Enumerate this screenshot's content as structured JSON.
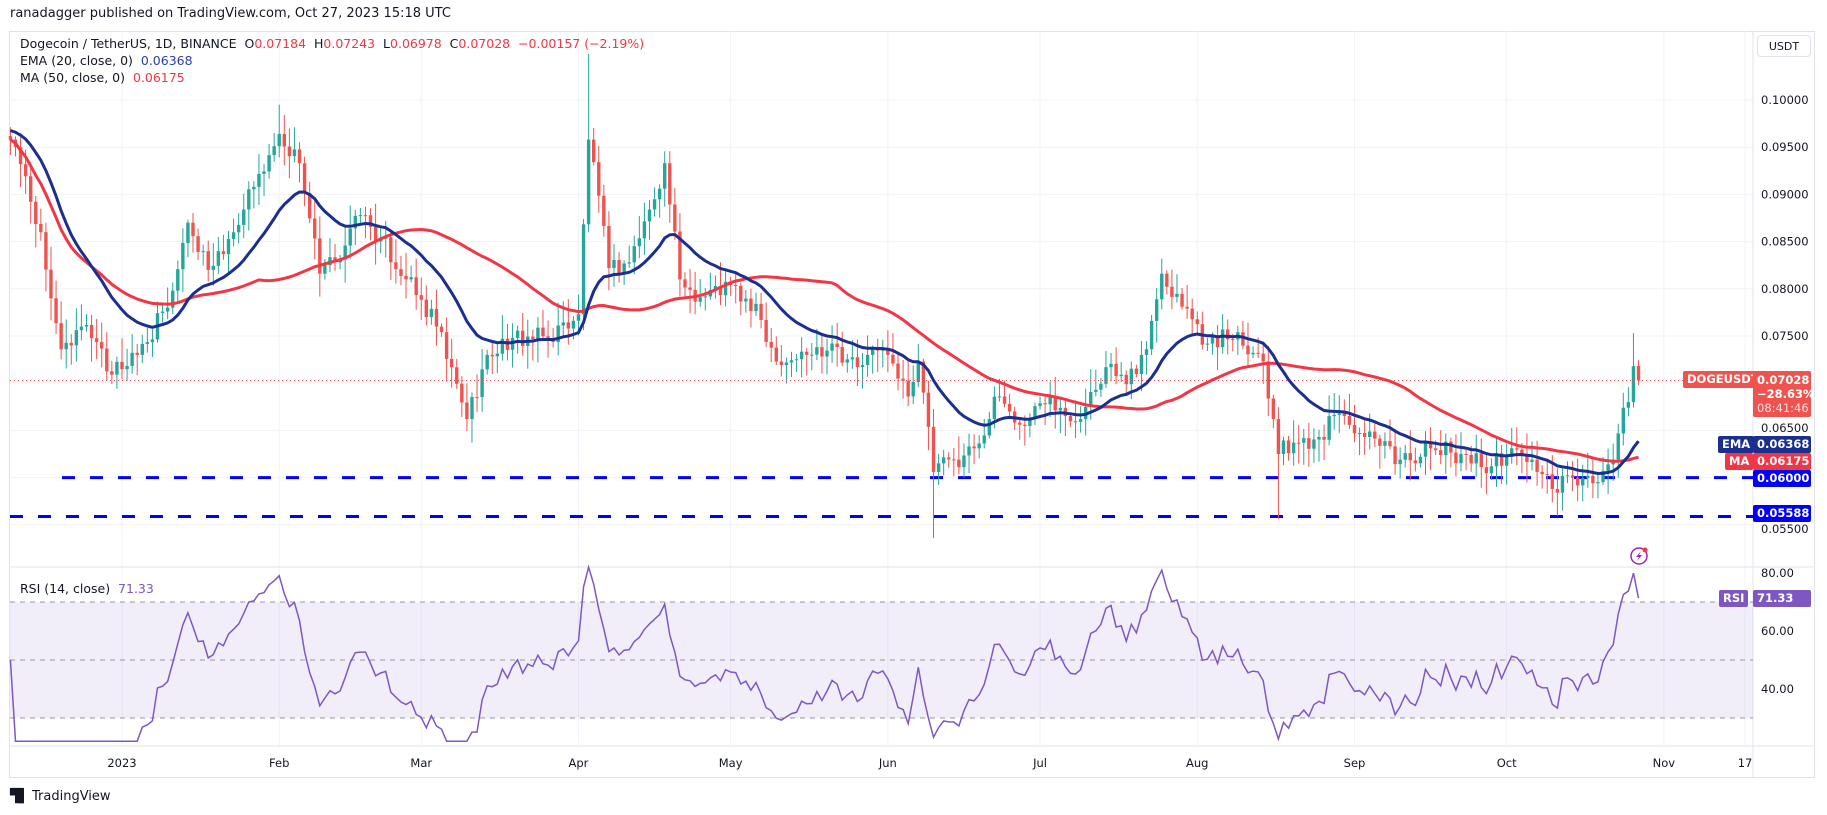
{
  "published": "ranadagger published on TradingView.com, Oct 27, 2023 15:18 UTC",
  "legend": {
    "symbol": "Dogecoin / TetherUS, 1D, BINANCE",
    "o_label": "O",
    "o": "0.07184",
    "h_label": "H",
    "h": "0.07243",
    "l_label": "L",
    "l": "0.06978",
    "c_label": "C",
    "c": "0.07028",
    "change": "−0.00157 (−2.19%)",
    "ema_label": "EMA (20, close, 0)",
    "ema_value": "0.06368",
    "ma_label": "MA (50, close, 0)",
    "ma_value": "0.06175",
    "rsi_label": "RSI (14, close)",
    "rsi_value": "71.33"
  },
  "currency_button": "USDT",
  "badges": {
    "symbol": "DOGEUSDT",
    "price": "0.07028",
    "change_pct": "−28.63%",
    "countdown": "08:41:46",
    "ema_tag": "EMA",
    "ema": "0.06368",
    "ma_tag": "MA",
    "ma": "0.06175",
    "support1": "0.06000",
    "support2": "0.05588",
    "rsi_tag": "RSI",
    "rsi": "71.33"
  },
  "footer": {
    "brand": "TradingView",
    "logo": "TV"
  },
  "colors": {
    "up": "#26a69a",
    "down": "#ef5350",
    "ema": "#1b2f8f",
    "ma": "#f23645",
    "support": "#0000ff",
    "rsi": "#7e57c2"
  },
  "icons": {
    "alert": "lightning-alert-icon"
  },
  "chart_data": {
    "type": "candlestick",
    "symbol": "DOGEUSDT",
    "interval": "1D",
    "price_axis_ticks": [
      "0.10000",
      "0.09500",
      "0.09000",
      "0.08500",
      "0.08000",
      "0.07500",
      "0.06500",
      "0.05500"
    ],
    "rsi_axis_ticks": [
      "80.00",
      "60.00",
      "40.00"
    ],
    "rsi_bands": [
      70,
      30
    ],
    "time_axis_ticks": [
      {
        "label": "2023",
        "date": "2023-01-01"
      },
      {
        "label": "Feb",
        "date": "2023-02-01"
      },
      {
        "label": "Mar",
        "date": "2023-03-01"
      },
      {
        "label": "Apr",
        "date": "2023-04-01"
      },
      {
        "label": "May",
        "date": "2023-05-01"
      },
      {
        "label": "Jun",
        "date": "2023-06-01"
      },
      {
        "label": "Jul",
        "date": "2023-07-01"
      },
      {
        "label": "Aug",
        "date": "2023-08-01"
      },
      {
        "label": "Sep",
        "date": "2023-09-01"
      },
      {
        "label": "Oct",
        "date": "2023-10-01"
      },
      {
        "label": "Nov",
        "date": "2023-11-01"
      },
      {
        "label": "17",
        "date": "2023-11-17"
      }
    ],
    "horizontal_levels": [
      0.06,
      0.05588
    ],
    "last_candle": {
      "date": "2023-10-27",
      "open": 0.07184,
      "high": 0.07243,
      "low": 0.06978,
      "close": 0.07028
    },
    "close_anchors": [
      [
        "2022-12-10",
        0.0958
      ],
      [
        "2022-12-16",
        0.086
      ],
      [
        "2022-12-18",
        0.079
      ],
      [
        "2022-12-20",
        0.0736
      ],
      [
        "2022-12-24",
        0.076
      ],
      [
        "2022-12-30",
        0.0709
      ],
      [
        "2023-01-04",
        0.073
      ],
      [
        "2023-01-10",
        0.078
      ],
      [
        "2023-01-14",
        0.087
      ],
      [
        "2023-01-18",
        0.082
      ],
      [
        "2023-01-25",
        0.0884
      ],
      [
        "2023-02-01",
        0.0964
      ],
      [
        "2023-02-05",
        0.0933
      ],
      [
        "2023-02-09",
        0.0816
      ],
      [
        "2023-02-12",
        0.0828
      ],
      [
        "2023-02-17",
        0.0878
      ],
      [
        "2023-02-21",
        0.0853
      ],
      [
        "2023-02-26",
        0.081
      ],
      [
        "2023-03-04",
        0.076
      ],
      [
        "2023-03-10",
        0.0662
      ],
      [
        "2023-03-14",
        0.073
      ],
      [
        "2023-03-19",
        0.0748
      ],
      [
        "2023-03-26",
        0.0748
      ],
      [
        "2023-04-01",
        0.0773
      ],
      [
        "2023-04-03",
        0.0958
      ],
      [
        "2023-04-07",
        0.0822
      ],
      [
        "2023-04-11",
        0.0828
      ],
      [
        "2023-04-15",
        0.0884
      ],
      [
        "2023-04-18",
        0.0933
      ],
      [
        "2023-04-21",
        0.081
      ],
      [
        "2023-04-25",
        0.0791
      ],
      [
        "2023-05-01",
        0.0804
      ],
      [
        "2023-05-07",
        0.0767
      ],
      [
        "2023-05-10",
        0.0723
      ],
      [
        "2023-05-16",
        0.073
      ],
      [
        "2023-05-21",
        0.0742
      ],
      [
        "2023-05-26",
        0.0717
      ],
      [
        "2023-05-31",
        0.0736
      ],
      [
        "2023-06-05",
        0.0686
      ],
      [
        "2023-06-07",
        0.0723
      ],
      [
        "2023-06-10",
        0.0606
      ],
      [
        "2023-06-14",
        0.0619
      ],
      [
        "2023-06-18",
        0.0631
      ],
      [
        "2023-06-23",
        0.0686
      ],
      [
        "2023-06-27",
        0.0656
      ],
      [
        "2023-07-03",
        0.0686
      ],
      [
        "2023-07-09",
        0.0662
      ],
      [
        "2023-07-14",
        0.0717
      ],
      [
        "2023-07-18",
        0.0699
      ],
      [
        "2023-07-22",
        0.0736
      ],
      [
        "2023-07-25",
        0.0816
      ],
      [
        "2023-07-30",
        0.0779
      ],
      [
        "2023-08-03",
        0.0742
      ],
      [
        "2023-08-09",
        0.0754
      ],
      [
        "2023-08-14",
        0.0723
      ],
      [
        "2023-08-16",
        0.0662
      ],
      [
        "2023-08-17",
        0.0625
      ],
      [
        "2023-08-20",
        0.0637
      ],
      [
        "2023-08-25",
        0.0643
      ],
      [
        "2023-08-29",
        0.0668
      ],
      [
        "2023-09-03",
        0.0643
      ],
      [
        "2023-09-10",
        0.0619
      ],
      [
        "2023-09-16",
        0.0631
      ],
      [
        "2023-09-22",
        0.0625
      ],
      [
        "2023-09-28",
        0.0612
      ],
      [
        "2023-10-02",
        0.0631
      ],
      [
        "2023-10-06",
        0.0619
      ],
      [
        "2023-10-10",
        0.0588
      ],
      [
        "2023-10-14",
        0.06
      ],
      [
        "2023-10-18",
        0.0594
      ],
      [
        "2023-10-22",
        0.0619
      ],
      [
        "2023-10-24",
        0.0674
      ],
      [
        "2023-10-25",
        0.068
      ],
      [
        "2023-10-26",
        0.0718
      ],
      [
        "2023-10-27",
        0.07028
      ]
    ],
    "notable_extremes": [
      {
        "date": "2023-04-03",
        "high": 0.1049
      },
      {
        "date": "2023-06-10",
        "low": 0.0536
      },
      {
        "date": "2023-08-17",
        "low": 0.0556
      },
      {
        "date": "2023-10-26",
        "high": 0.0753
      },
      {
        "date": "2023-02-01",
        "high": 0.0995
      }
    ]
  }
}
